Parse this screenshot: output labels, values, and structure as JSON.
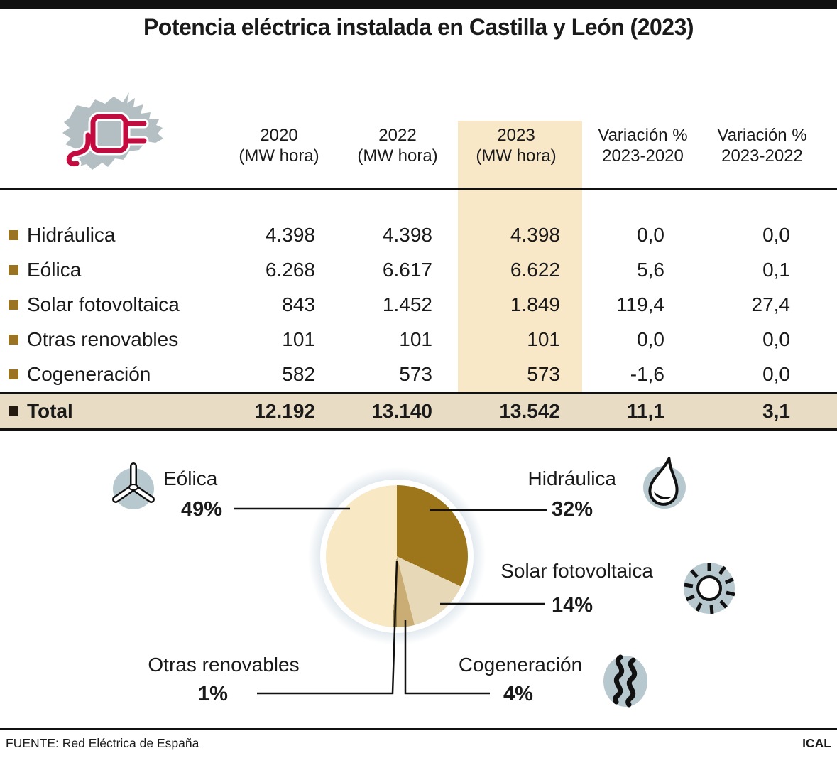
{
  "title": "Potencia eléctrica instalada en Castilla y León (2023)",
  "table": {
    "col_headers": [
      {
        "line1": "2020",
        "line2": "(MW hora)"
      },
      {
        "line1": "2022",
        "line2": "(MW hora)"
      },
      {
        "line1": "2023",
        "line2": "(MW hora)"
      },
      {
        "line1": "Variación %",
        "line2": "2023-2020"
      },
      {
        "line1": "Variación %",
        "line2": "2023-2022"
      }
    ],
    "rows": [
      {
        "label": "Hidráulica",
        "values": [
          "4.398",
          "4.398",
          "4.398",
          "0,0",
          "0,0"
        ]
      },
      {
        "label": "Eólica",
        "values": [
          "6.268",
          "6.617",
          "6.622",
          "5,6",
          "0,1"
        ]
      },
      {
        "label": "Solar fotovoltaica",
        "values": [
          "843",
          "1.452",
          "1.849",
          "119,4",
          "27,4"
        ]
      },
      {
        "label": "Otras renovables",
        "values": [
          "101",
          "101",
          "101",
          "0,0",
          "0,0"
        ]
      },
      {
        "label": "Cogeneración",
        "values": [
          "582",
          "573",
          "573",
          "-1,6",
          "0,0"
        ]
      }
    ],
    "total": {
      "label": "Total",
      "values": [
        "12.192",
        "13.140",
        "13.542",
        "11,1",
        "3,1"
      ]
    }
  },
  "chart_data": {
    "type": "pie",
    "start_angle_deg": 0,
    "direction": "clockwise",
    "slices": [
      {
        "label": "Hidráulica",
        "value_pct": 32,
        "color": "#9d761c"
      },
      {
        "label": "Solar fotovoltaica",
        "value_pct": 14,
        "color": "#e7d8b8"
      },
      {
        "label": "Cogeneración",
        "value_pct": 4,
        "color": "#c9ad74"
      },
      {
        "label": "Otras renovables",
        "value_pct": 1,
        "color": "#8f7d42"
      },
      {
        "label": "Eólica",
        "value_pct": 49,
        "color": "#f8e8c4"
      }
    ]
  },
  "callouts": {
    "eolica": {
      "name": "Eólica",
      "pct": "49%"
    },
    "hidraulica": {
      "name": "Hidráulica",
      "pct": "32%"
    },
    "solar": {
      "name": "Solar fotovoltaica",
      "pct": "14%"
    },
    "otras": {
      "name": "Otras renovables",
      "pct": "1%"
    },
    "cogeneracion": {
      "name": "Cogeneración",
      "pct": "4%"
    }
  },
  "icons": {
    "logo": "castilla-y-leon-map-with-plug",
    "eolica": "wind-turbine-icon",
    "hidraulica": "water-drop-icon",
    "solar": "sun-icon",
    "cogeneracion": "steam-icon"
  },
  "colors": {
    "accent_red": "#c30b40",
    "map_gray": "#b4bfc3",
    "icon_circle": "#b7c9cf",
    "highlight_band": "#f8e8c8",
    "total_band": "#e9dcc4",
    "bullet_gold": "#9a7423"
  },
  "footer": {
    "source": "FUENTE: Red Eléctrica de España",
    "credit": "ICAL"
  }
}
